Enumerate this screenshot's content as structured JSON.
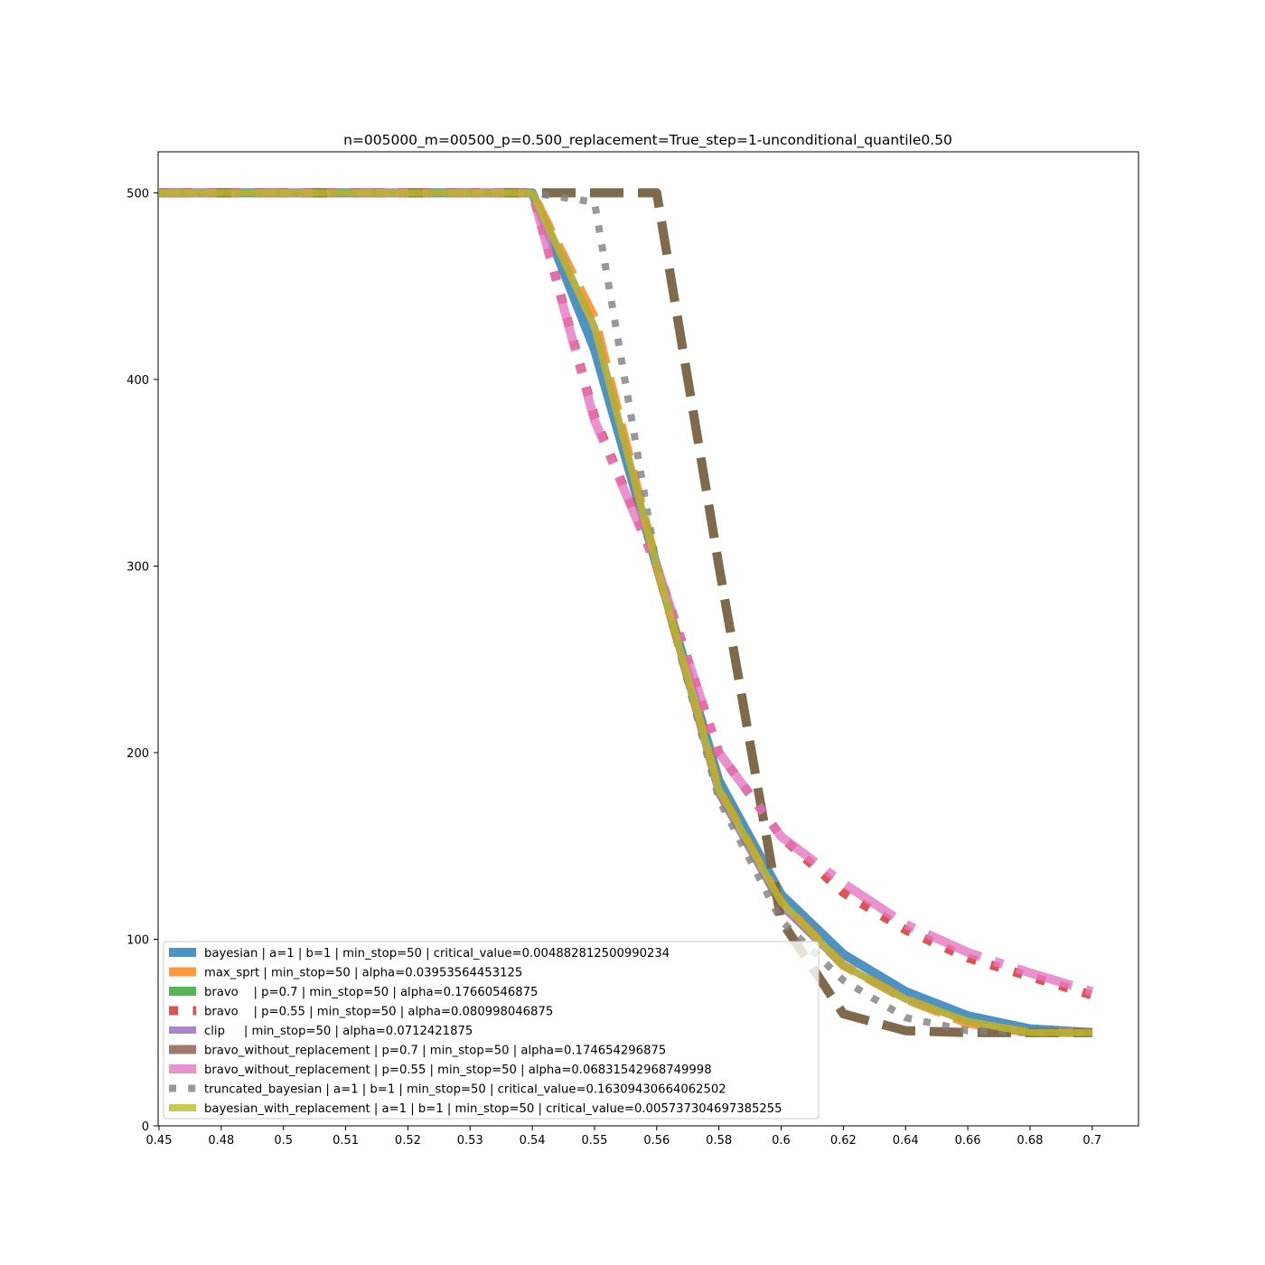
{
  "chart_data": {
    "type": "line",
    "title": "n=005000_m=00500_p=0.500_replacement=True_step=1-unconditional_quantile0.50",
    "xlabel": "",
    "ylabel": "",
    "categories": [
      "0.45",
      "0.48",
      "0.5",
      "0.51",
      "0.52",
      "0.53",
      "0.54",
      "0.55",
      "0.56",
      "0.58",
      "0.6",
      "0.62",
      "0.64",
      "0.66",
      "0.68",
      "0.7"
    ],
    "yticks": [
      "0",
      "100",
      "200",
      "300",
      "400",
      "500"
    ],
    "ylim": [
      0,
      522
    ],
    "grid": false,
    "legend_position": "lower-left",
    "series": [
      {
        "name": "bayesian | a=1 | b=1 | min_stop=50 | critical_value=0.004882812500990234",
        "color": "#1f77b4",
        "style": "solid",
        "width": 10,
        "values": [
          500,
          500,
          500,
          500,
          500,
          500,
          500,
          416,
          300,
          185,
          124,
          92,
          72,
          59,
          52,
          50
        ]
      },
      {
        "name": "max_sprt | min_stop=50 | alpha=0.03953564453125",
        "color": "#ff7f0e",
        "style": "dashed",
        "width": 10,
        "values": [
          500,
          500,
          500,
          500,
          500,
          500,
          500,
          433,
          300,
          180,
          120,
          86,
          68,
          55,
          50,
          50
        ]
      },
      {
        "name": "bravo    | p=0.7 | min_stop=50 | alpha=0.17660546875",
        "color": "#2ca02c",
        "style": "dashed",
        "width": 10,
        "values": [
          500,
          500,
          500,
          500,
          500,
          500,
          500,
          500,
          500,
          300,
          110,
          60,
          51,
          50,
          50,
          50
        ]
      },
      {
        "name": "bravo    | p=0.55 | min_stop=50 | alpha=0.080998046875",
        "color": "#d62728",
        "style": "dotted",
        "width": 10,
        "values": [
          500,
          500,
          500,
          500,
          500,
          500,
          500,
          380,
          300,
          200,
          155,
          125,
          105,
          90,
          80,
          70
        ]
      },
      {
        "name": "clip     | min_stop=50 | alpha=0.0712421875",
        "color": "#9467bd",
        "style": "solid",
        "width": 8,
        "values": [
          500,
          500,
          500,
          500,
          500,
          500,
          500,
          428,
          300,
          178,
          118,
          86,
          68,
          56,
          50,
          50
        ]
      },
      {
        "name": "bravo_without_replacement | p=0.7 | min_stop=50 | alpha=0.174654296875",
        "color": "#8c564b",
        "style": "dashed",
        "width": 10,
        "values": [
          500,
          500,
          500,
          500,
          500,
          500,
          500,
          500,
          500,
          300,
          110,
          60,
          51,
          50,
          50,
          50
        ]
      },
      {
        "name": "bravo_without_replacement | p=0.55 | min_stop=50 | alpha=0.06831542968749998",
        "color": "#e377c2",
        "style": "dashdot",
        "width": 10,
        "values": [
          500,
          500,
          500,
          500,
          500,
          500,
          500,
          378,
          300,
          200,
          155,
          130,
          108,
          93,
          82,
          72
        ]
      },
      {
        "name": "truncated_bayesian | a=1 | b=1 | min_stop=50 | critical_value=0.16309430664062502",
        "color": "#7f7f7f",
        "style": "dotted",
        "width": 8,
        "values": [
          500,
          500,
          500,
          500,
          500,
          500,
          500,
          495,
          300,
          175,
          110,
          78,
          58,
          51,
          50,
          50
        ]
      },
      {
        "name": "bayesian_with_replacement | a=1 | b=1 | min_stop=50 | critical_value=0.005737304697385255",
        "color": "#bcbd22",
        "style": "solid",
        "width": 8,
        "values": [
          500,
          500,
          500,
          500,
          500,
          500,
          500,
          428,
          300,
          180,
          120,
          86,
          68,
          56,
          50,
          50
        ]
      }
    ]
  }
}
